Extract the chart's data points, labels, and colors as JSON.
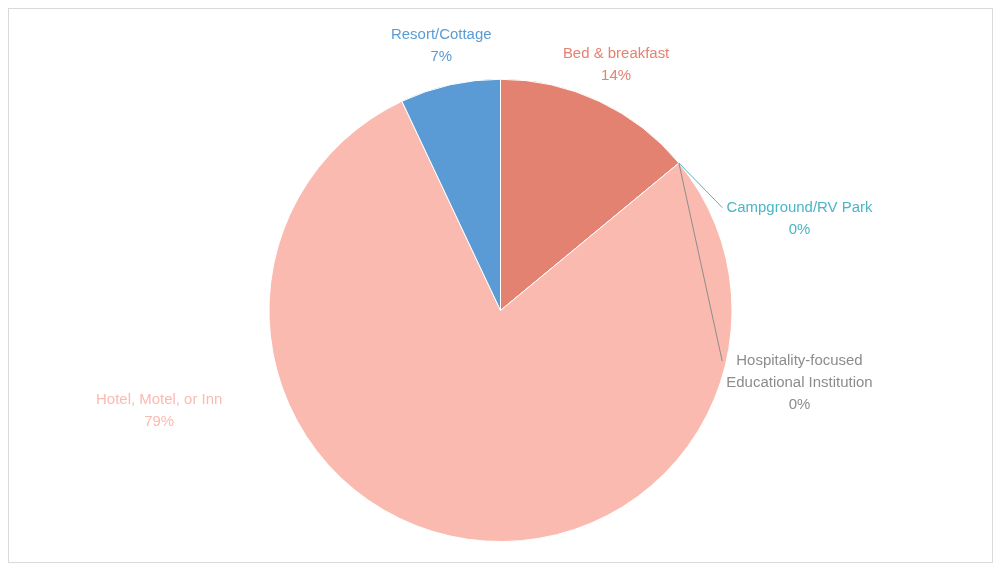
{
  "chart_data": {
    "type": "pie",
    "categories": [
      "Bed & breakfast",
      "Campground/RV Park",
      "Hospitality-focused Educational Institution",
      "Hotel, Motel, or Inn",
      "Resort/Cottage"
    ],
    "values": [
      14,
      0,
      0,
      79,
      7
    ],
    "value_labels": [
      "14%",
      "0%",
      "0%",
      "79%",
      "7%"
    ],
    "colors": [
      "#e48272",
      "#4bb5c6",
      "#8c8c8c",
      "#fbbab0",
      "#5b9bd5"
    ],
    "legend": false
  }
}
